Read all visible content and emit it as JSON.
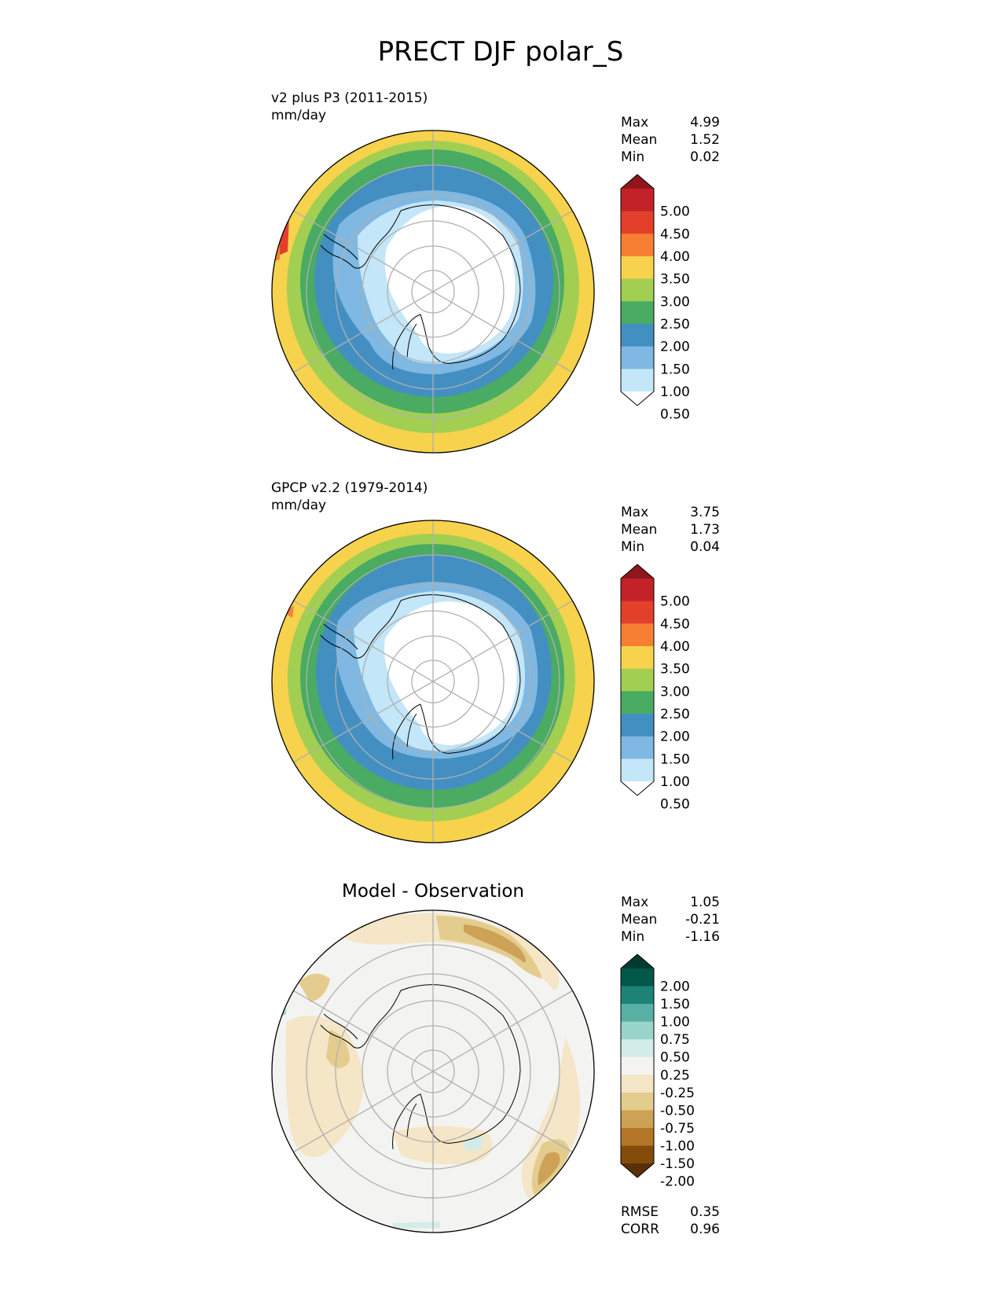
{
  "title": "PRECT DJF polar_S",
  "colors": {
    "precip_levels": [
      "#ffffff",
      "#c3e6f8",
      "#7fb8e2",
      "#438fc2",
      "#4aab62",
      "#a2cf52",
      "#f7d24c",
      "#f77f33",
      "#e3402c",
      "#c42229",
      "#8f161c"
    ],
    "diff_levels": [
      "#593008",
      "#844b0b",
      "#b47627",
      "#cda256",
      "#e4cc8f",
      "#f4e6c6",
      "#f3f3f1",
      "#d3ece9",
      "#98d4ca",
      "#58afa3",
      "#1c8376",
      "#00574a",
      "#003b2f"
    ],
    "land_outline": "#000000",
    "grid": "#b0b0b0"
  },
  "chart_data": [
    {
      "type": "heatmap",
      "projection": "south polar stereographic",
      "name": "v2 plus P3 (2011-2015)",
      "units": "mm/day",
      "stats": {
        "max_label": "Max",
        "max": "4.99",
        "mean_label": "Mean",
        "mean": "1.52",
        "min_label": "Min",
        "min": "0.02"
      },
      "colorbar_levels": [
        "5.00",
        "4.50",
        "4.00",
        "3.50",
        "3.00",
        "2.50",
        "2.00",
        "1.50",
        "1.00",
        "0.50"
      ],
      "colorbar_extend": "both",
      "grid": true
    },
    {
      "type": "heatmap",
      "projection": "south polar stereographic",
      "name": "GPCP v2.2 (1979-2014)",
      "units": "mm/day",
      "stats": {
        "max_label": "Max",
        "max": "3.75",
        "mean_label": "Mean",
        "mean": "1.73",
        "min_label": "Min",
        "min": "0.04"
      },
      "colorbar_levels": [
        "5.00",
        "4.50",
        "4.00",
        "3.50",
        "3.00",
        "2.50",
        "2.00",
        "1.50",
        "1.00",
        "0.50"
      ],
      "colorbar_extend": "both",
      "grid": true
    },
    {
      "type": "heatmap",
      "projection": "south polar stereographic",
      "title": "Model - Observation",
      "stats": {
        "max_label": "Max",
        "max": "1.05",
        "mean_label": "Mean",
        "mean": "-0.21",
        "min_label": "Min",
        "min": "-1.16"
      },
      "colorbar_levels": [
        "2.00",
        "1.50",
        "1.00",
        "0.75",
        "0.50",
        "0.25",
        "-0.25",
        "-0.50",
        "-0.75",
        "-1.00",
        "-1.50",
        "-2.00"
      ],
      "colorbar_extend": "both",
      "metrics": {
        "rmse_label": "RMSE",
        "rmse": "0.35",
        "corr_label": "CORR",
        "corr": "0.96"
      },
      "grid": true
    }
  ]
}
